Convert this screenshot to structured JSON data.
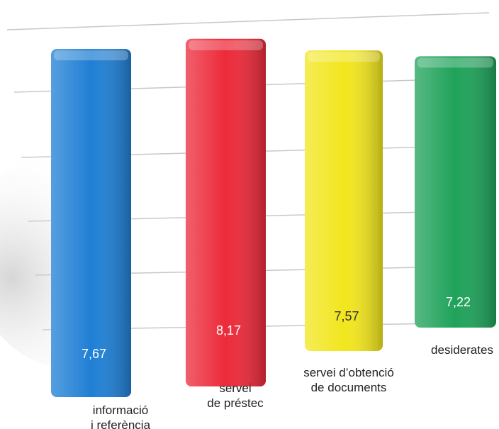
{
  "chart_data": {
    "type": "bar",
    "categories": [
      "informació\ni referència",
      "servei\nde préstec",
      "servei d’obtenció\nde documents",
      "desiderates"
    ],
    "values": [
      7.67,
      8.17,
      7.57,
      7.22
    ],
    "value_labels": [
      "7,67",
      "8,17",
      "7,57",
      "7,22"
    ],
    "colors": [
      "#1f7fd4",
      "#ec2a3a",
      "#f2e61e",
      "#1fa25a"
    ],
    "ylim": [
      0,
      9
    ]
  }
}
